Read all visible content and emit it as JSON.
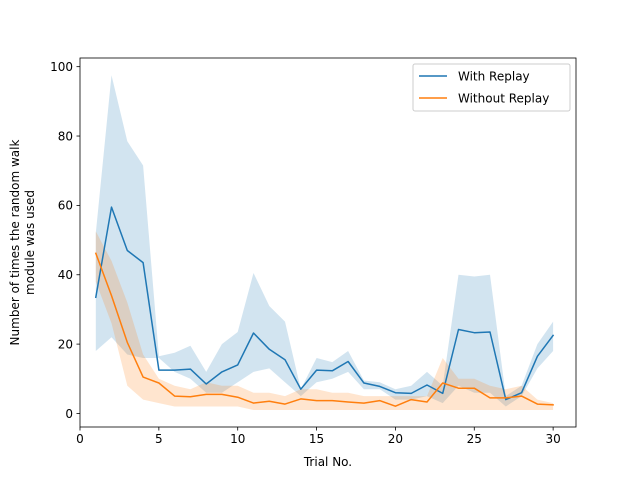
{
  "chart_data": {
    "type": "line",
    "xlabel": "Trial No.",
    "ylabel_lines": [
      "Number of times the random walk",
      "module was used"
    ],
    "xlim": [
      0,
      31.45
    ],
    "ylim": [
      -3.9,
      102.5
    ],
    "xticks": [
      0,
      5,
      10,
      15,
      20,
      25,
      30
    ],
    "yticks": [
      0,
      20,
      40,
      60,
      80,
      100
    ],
    "legend_position": "upper right",
    "x": [
      1,
      2,
      3,
      4,
      5,
      6,
      7,
      8,
      9,
      10,
      11,
      12,
      13,
      14,
      15,
      16,
      17,
      18,
      19,
      20,
      21,
      22,
      23,
      24,
      25,
      26,
      27,
      28,
      29,
      30
    ],
    "series": [
      {
        "name": "With Replay",
        "color": "#1f77b4",
        "band_color": "#1f77b4",
        "values": [
          33.5,
          59.5,
          47,
          43.5,
          12.5,
          12.5,
          12.8,
          8.5,
          12,
          14,
          23.2,
          18.5,
          15.5,
          7,
          12.5,
          12.3,
          15,
          8.8,
          7.8,
          6,
          5.8,
          8.2,
          5.8,
          24.2,
          23.3,
          23.5,
          4,
          6,
          16.5,
          22.5
        ],
        "lower": [
          18,
          22,
          17,
          16,
          16,
          12,
          10,
          6,
          6,
          9,
          12,
          13,
          9,
          5,
          9,
          10,
          12,
          7,
          7,
          4,
          4,
          5,
          3,
          8,
          6,
          6,
          2,
          5,
          13,
          18
        ],
        "upper": [
          52,
          97.5,
          78.5,
          71.5,
          16.5,
          17.5,
          19.5,
          12,
          20,
          23.5,
          40.5,
          31,
          26.5,
          7,
          16,
          14.8,
          18,
          9.5,
          9,
          7,
          8,
          12,
          8,
          40,
          39.5,
          40,
          5,
          8,
          20,
          26.5
        ]
      },
      {
        "name": "Without Replay",
        "color": "#ff7f0e",
        "band_color": "#ff7f0e",
        "values": [
          46.2,
          34,
          20.5,
          10.5,
          8.8,
          5,
          4.8,
          5.5,
          5.5,
          4.7,
          3,
          3.5,
          2.7,
          4.2,
          3.7,
          3.7,
          3.3,
          3,
          3.7,
          2.1,
          4,
          3.3,
          8.8,
          7.3,
          7.3,
          4.5,
          4.5,
          5,
          2.7,
          2.5
        ],
        "lower": [
          38,
          26,
          8,
          4,
          3,
          2,
          2,
          2,
          2,
          2,
          1,
          1,
          1,
          1,
          1,
          1,
          1,
          1,
          1,
          1,
          1,
          1,
          1,
          1,
          1,
          1,
          1,
          1,
          1,
          1
        ],
        "upper": [
          52.5,
          44,
          32,
          17,
          10,
          8,
          7,
          9,
          8,
          8,
          6,
          6,
          5,
          7,
          7,
          6,
          6,
          5,
          5,
          5,
          5,
          5,
          16,
          10,
          10,
          8,
          7,
          8,
          4,
          3
        ]
      }
    ]
  }
}
